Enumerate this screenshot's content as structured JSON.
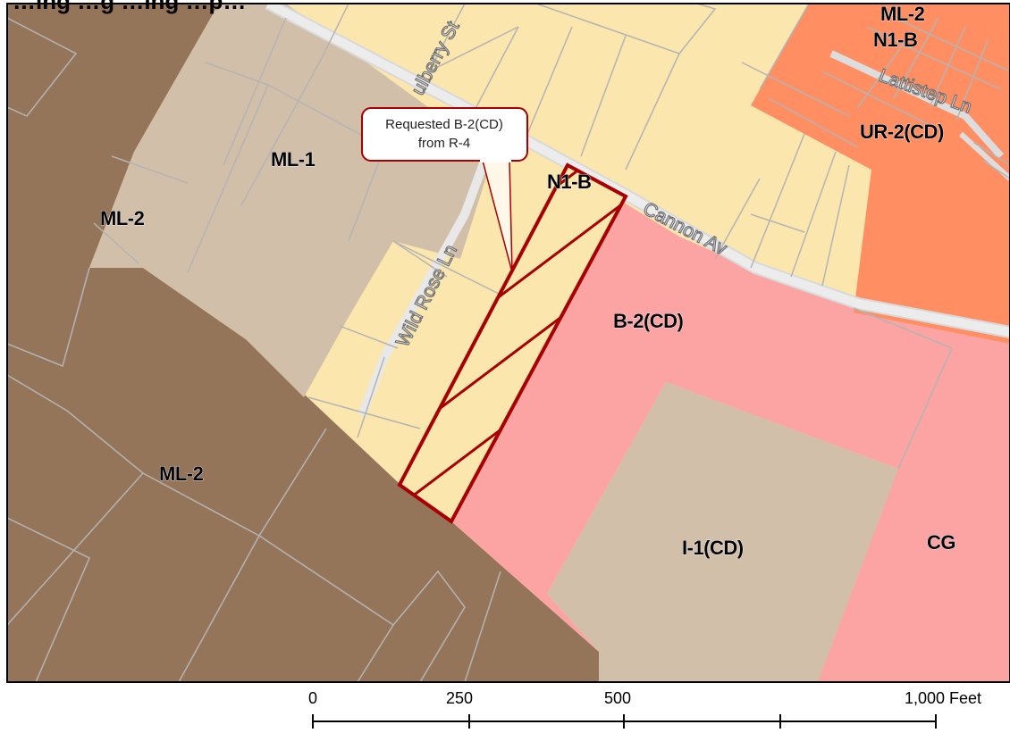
{
  "title": "…ing …g …ing …p…",
  "colors": {
    "ml2_heavy_industrial": "#957559",
    "ml1_light_industrial": "#d2bfa9",
    "i1_cd": "#d2bfa9",
    "residential_r4": "#fbe6ae",
    "b2_cd_business": "#fca3a3",
    "cg_general_commercial": "#fca3a3",
    "ur2_cd_urban_residential": "#ff8e63",
    "road": "#e6e6e6",
    "parcel_line": "#b4b4b4",
    "subject_outline": "#a80000"
  },
  "zones": {
    "ml2_upper": "ML-2",
    "ml1": "ML-1",
    "ml2_lower": "ML-2",
    "n1b_center": "N1-B",
    "b2cd": "B-2(CD)",
    "i1cd": "I-1(CD)",
    "cg": "CG",
    "ml2_top_right": "ML-2",
    "n1b_top_right": "N1-B",
    "ur2cd": "UR-2(CD)"
  },
  "roads": {
    "mulberry": "ulberry St",
    "wild_rose": "Wild Rose Ln",
    "cannon": "Cannon Av",
    "lattistep": "Lattistep Ln"
  },
  "callout": {
    "line1": "Requested B-2(CD)",
    "line2": "from R-4"
  },
  "scale_bar": {
    "labels": [
      "0",
      "250",
      "500",
      "1,000 Feet"
    ]
  },
  "icons": {
    "subject-parcel": "hatched-polygon"
  }
}
